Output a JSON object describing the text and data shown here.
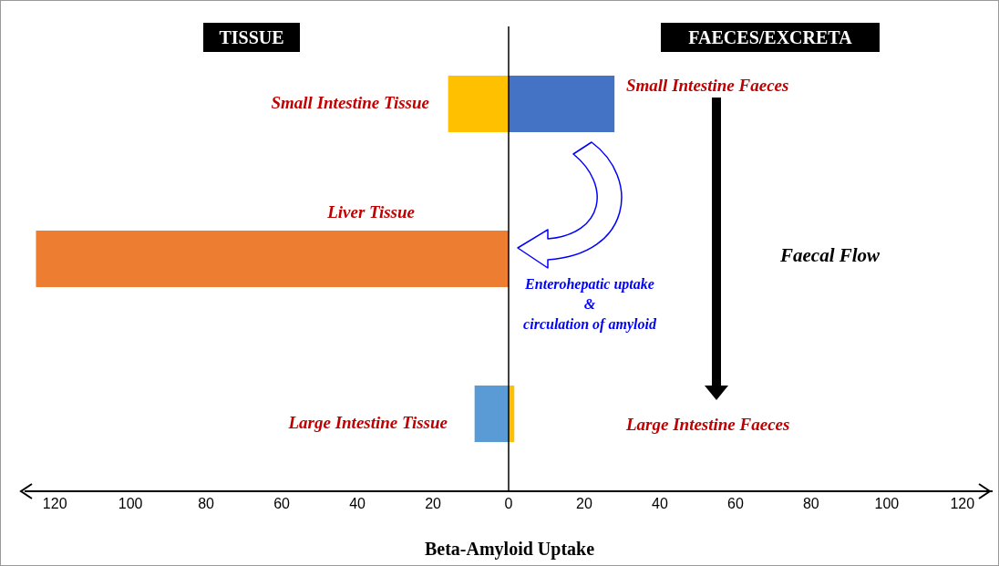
{
  "chart_data": {
    "type": "bar",
    "orientation": "horizontal",
    "stacked": true,
    "xlabel": "Beta-Amyloid Uptake",
    "categories": [
      null,
      null,
      null
    ],
    "series": [
      {
        "colors": [
          "#ffc000",
          "#ed7d31",
          "#5b9bd5"
        ],
        "values": [
          -16,
          -125,
          -9
        ]
      },
      {
        "colors": [
          "#4472c4",
          "#4472c4",
          "#ffc000"
        ],
        "values": [
          28,
          null,
          1.5
        ]
      }
    ],
    "xlim": [
      -128,
      128
    ],
    "xticks": [
      {
        "value": -120,
        "label": "120"
      },
      {
        "value": -100,
        "label": "100"
      },
      {
        "value": -80,
        "label": "80"
      },
      {
        "value": -60,
        "label": "60"
      },
      {
        "value": -40,
        "label": "40"
      },
      {
        "value": -20,
        "label": "20"
      },
      0,
      20,
      40,
      60,
      80,
      100,
      120
    ],
    "ref_lines": [
      {
        "axis": "x",
        "value": 0,
        "color": "#000000"
      }
    ],
    "grid": false,
    "legend": false,
    "annotations": [
      "TISSUE",
      "FAECES/EXCRETA",
      "Small Intestine Tissue",
      "Small Intestine Faeces",
      "Liver Tissue",
      "Large Intestine Tissue",
      "Large Intestine Faeces",
      "Faecal Flow",
      "Enterohepatic uptake\n&\ncirculation of amyloid"
    ]
  }
}
